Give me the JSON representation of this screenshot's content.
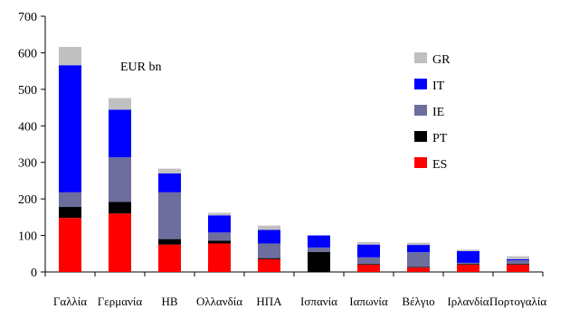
{
  "chart_data": {
    "type": "bar",
    "stacked": true,
    "unit_label": "EUR bn",
    "categories": [
      "Γαλλία",
      "Γερμανία",
      "ΗΒ",
      "Ολλανδία",
      "ΗΠΑ",
      "Ισπανία",
      "Ιαπωνία",
      "Βέλγιο",
      "Ιρλανδία",
      "Πορτογαλία"
    ],
    "series": [
      {
        "name": "ES",
        "color": "#ff0000",
        "values": [
          148,
          160,
          75,
          78,
          35,
          0,
          20,
          12,
          20,
          20
        ]
      },
      {
        "name": "PT",
        "color": "#000000",
        "values": [
          30,
          32,
          15,
          8,
          3,
          55,
          2,
          2,
          2,
          2
        ]
      },
      {
        "name": "IE",
        "color": "#6e6e9e",
        "values": [
          40,
          122,
          128,
          22,
          40,
          12,
          18,
          40,
          3,
          10
        ]
      },
      {
        "name": "IT",
        "color": "#0000ff",
        "values": [
          348,
          130,
          52,
          47,
          37,
          33,
          35,
          20,
          32,
          3
        ]
      },
      {
        "name": "GR",
        "color": "#c0c0c0",
        "values": [
          50,
          32,
          13,
          7,
          12,
          0,
          7,
          6,
          4,
          8
        ]
      }
    ],
    "ylim": [
      0,
      700
    ],
    "yticks": [
      "0",
      "100",
      "200",
      "300",
      "400",
      "500",
      "600",
      "700"
    ],
    "legend_order": [
      "GR",
      "IT",
      "IE",
      "PT",
      "ES"
    ],
    "legend_position": "right",
    "grid": false
  }
}
